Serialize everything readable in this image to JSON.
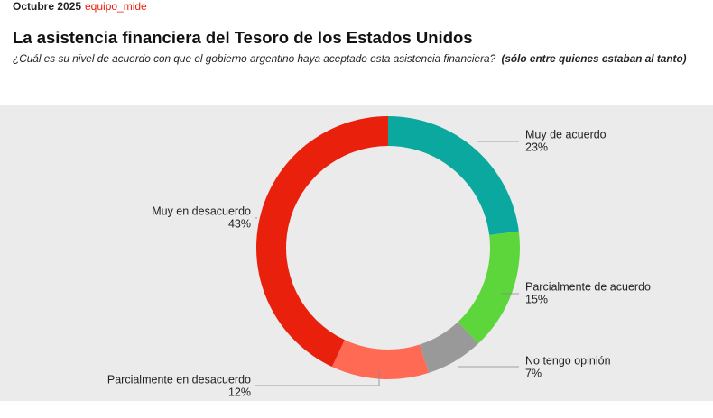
{
  "chart_data": {
    "type": "donut",
    "date": "Octubre 2025",
    "source": "equipo_mide",
    "title": "La asistencia financiera del Tesoro de los Estados Unidos",
    "subtitle": "¿Cuál es su nivel de acuerdo con que el gobierno argentino haya aceptado esta asistencia financiera?",
    "subtitle_note": "(sólo entre quienes estaban al tanto)",
    "categories": [
      "Muy de acuerdo",
      "Parcialmente de acuerdo",
      "No tengo opinión",
      "Parcialmente en desacuerdo",
      "Muy en desacuerdo"
    ],
    "values": [
      23,
      15,
      7,
      12,
      43
    ],
    "value_labels": [
      "23%",
      "15%",
      "7%",
      "12%",
      "43%"
    ],
    "colors": [
      "#0aa89e",
      "#5cd63a",
      "#999999",
      "#ff6a55",
      "#e8200c"
    ]
  }
}
